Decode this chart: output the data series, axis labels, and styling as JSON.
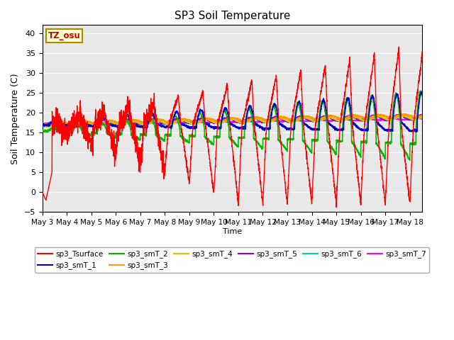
{
  "title": "SP3 Soil Temperature",
  "ylabel": "Soil Temperature (C)",
  "xlabel": "Time",
  "xlim_days": [
    0,
    15.5
  ],
  "ylim": [
    -5,
    42
  ],
  "yticks": [
    -5,
    0,
    5,
    10,
    15,
    20,
    25,
    30,
    35,
    40
  ],
  "xtick_labels": [
    "May 3",
    "May 4",
    "May 5",
    "May 6",
    "May 7",
    "May 8",
    "May 9",
    "May 10",
    "May 11",
    "May 12",
    "May 13",
    "May 14",
    "May 15",
    "May 16",
    "May 17",
    "May 18"
  ],
  "annotation_text": "TZ_osu",
  "annotation_color": "#cc0000",
  "annotation_bg": "#ffffcc",
  "annotation_border": "#aa8800",
  "bg_color": "#e8e8e8",
  "series_colors": {
    "sp3_Tsurface": "#ff0000",
    "sp3_smT_1": "#0000cc",
    "sp3_smT_2": "#00bb00",
    "sp3_smT_3": "#ff9900",
    "sp3_smT_4": "#cccc00",
    "sp3_smT_5": "#9900cc",
    "sp3_smT_6": "#00cccc",
    "sp3_smT_7": "#ff00ff"
  },
  "legend_order": [
    "sp3_Tsurface",
    "sp3_smT_1",
    "sp3_smT_2",
    "sp3_smT_3",
    "sp3_smT_4",
    "sp3_smT_5",
    "sp3_smT_6",
    "sp3_smT_7"
  ]
}
